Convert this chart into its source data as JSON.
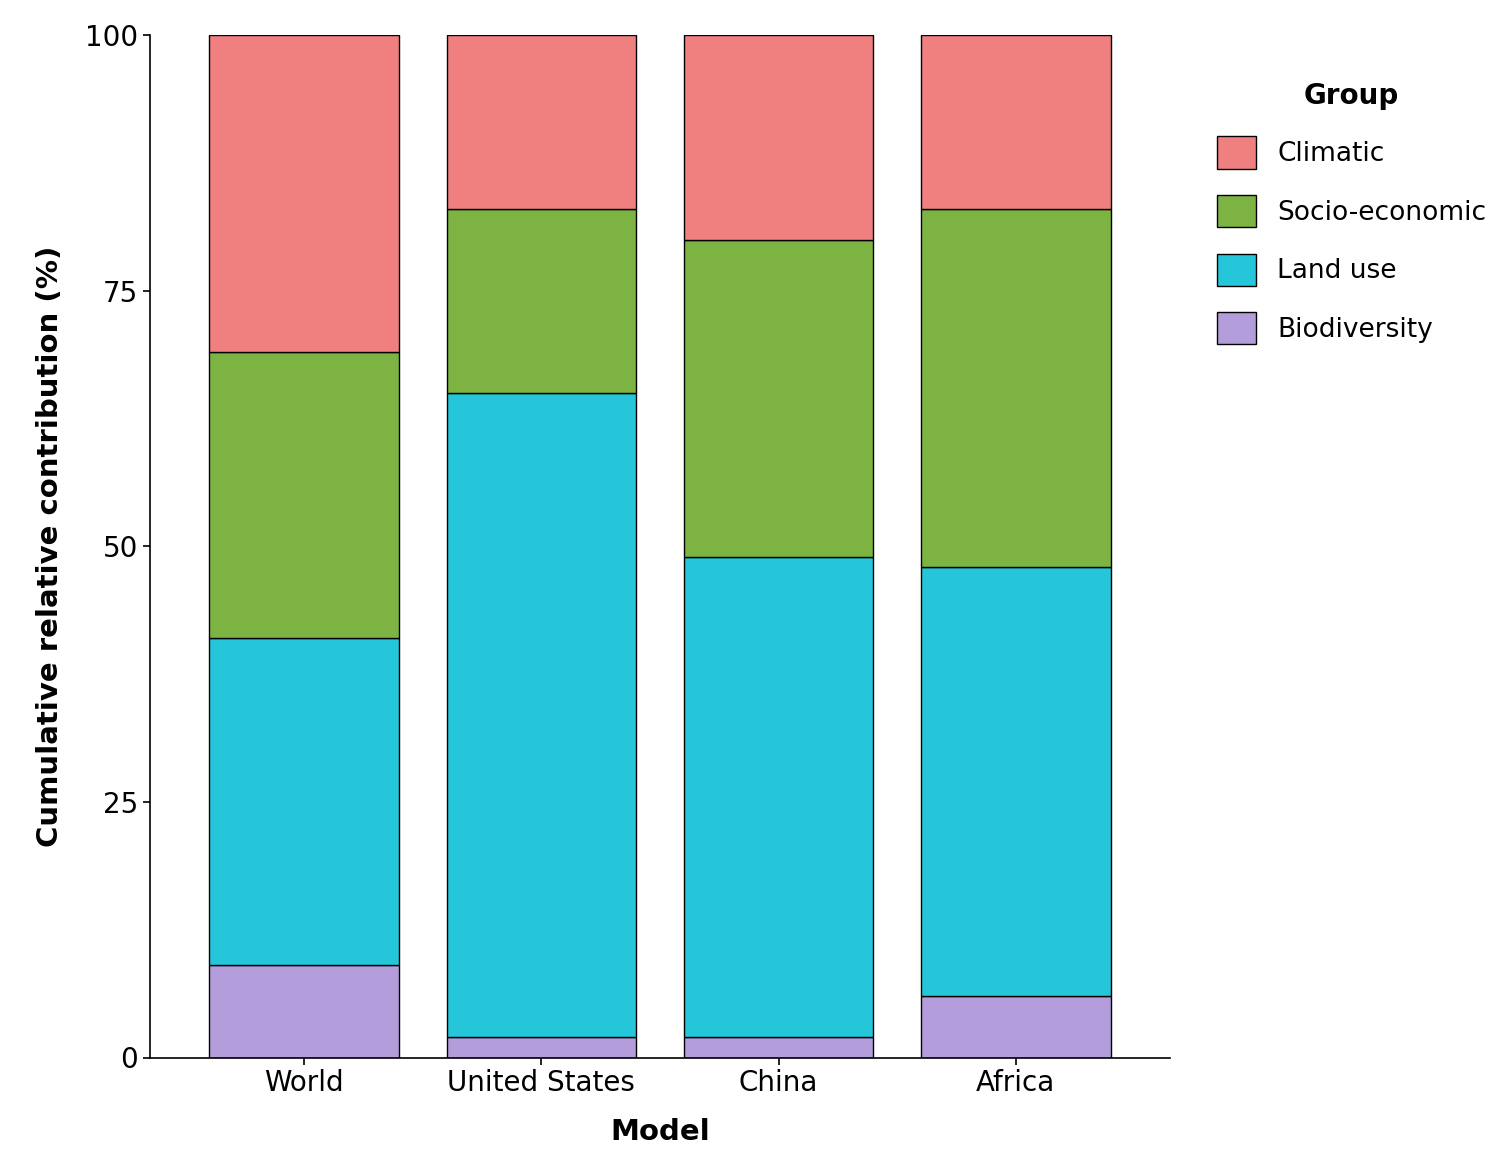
{
  "categories": [
    "World",
    "United States",
    "China",
    "Africa"
  ],
  "groups": [
    "Biodiversity",
    "Land use",
    "Socio-economic",
    "Climatic"
  ],
  "values": {
    "World": [
      9.0,
      32.0,
      28.0,
      31.0
    ],
    "United States": [
      2.0,
      63.0,
      18.0,
      17.0
    ],
    "China": [
      2.0,
      47.0,
      31.0,
      20.0
    ],
    "Africa": [
      6.0,
      42.0,
      35.0,
      17.0
    ]
  },
  "colors": {
    "Climatic": "#F08080",
    "Socio-economic": "#7CB342",
    "Land use": "#26C6DA",
    "Biodiversity": "#B39DDB"
  },
  "ylabel": "Cumulative relative contribution (%)",
  "xlabel": "Model",
  "legend_title": "Group",
  "ylim": [
    0,
    100
  ],
  "yticks": [
    0,
    25,
    50,
    75,
    100
  ],
  "bar_width": 0.8,
  "edgecolor": "black",
  "background_color": "#FFFFFF"
}
